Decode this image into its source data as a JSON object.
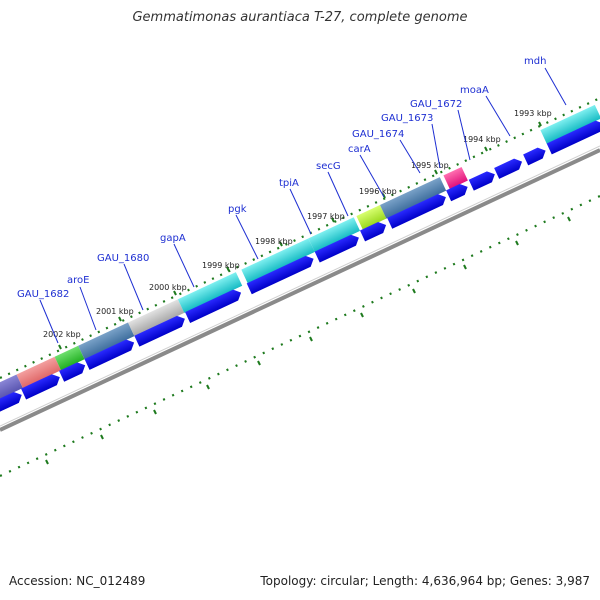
{
  "title": "Gemmatimonas aurantiaca T-27, complete genome",
  "footer": {
    "accession": "Accession: NC_012489",
    "summary": "Topology: circular; Length: 4,636,964 bp; Genes: 3,987"
  },
  "colors": {
    "gene_label": "#1e2fd2",
    "cds_arrow": "#0000f0",
    "tick_green": "#1e7a1e",
    "backbone": "#8a8a8a"
  },
  "kbp_labels": [
    "2002 kbp",
    "2001 kbp",
    "2000 kbp",
    "1999 kbp",
    "1998 kbp",
    "1997 kbp",
    "1996 kbp",
    "1995 kbp",
    "1994 kbp",
    "1993 kbp"
  ],
  "gene_labels": [
    "GAU_1682",
    "aroE",
    "GAU_1680",
    "gapA",
    "pgk",
    "tpiA",
    "secG",
    "carA",
    "GAU_1674",
    "GAU_1673",
    "GAU_1672",
    "moaA",
    "mdh"
  ]
}
